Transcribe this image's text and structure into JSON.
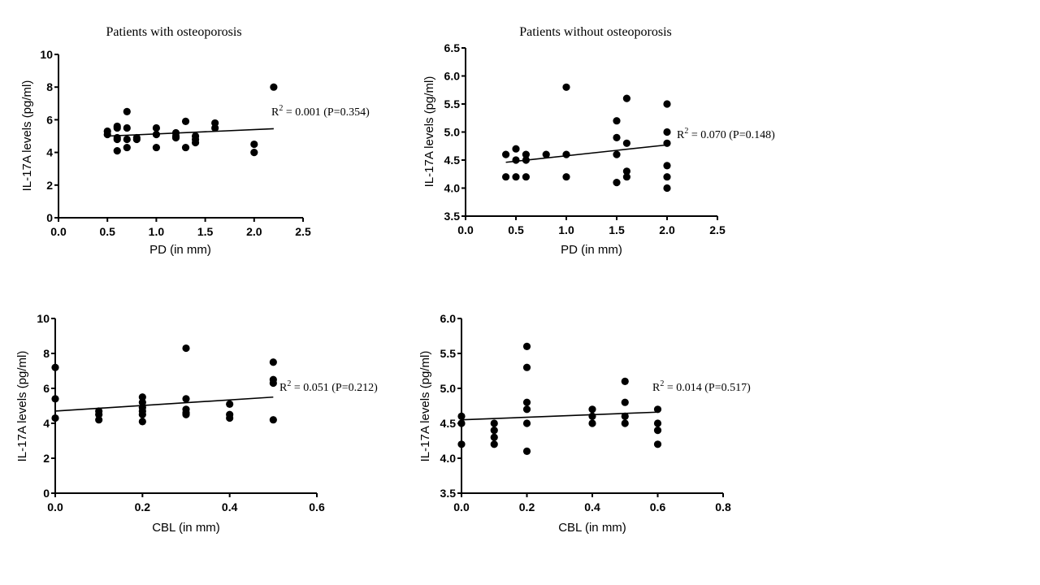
{
  "chart_data": [
    {
      "type": "scatter",
      "title": "Patients with osteoporosis",
      "xlabel": "PD (in mm)",
      "ylabel": "IL-17A levels (pg/ml)",
      "xlim": [
        0,
        2.5
      ],
      "ylim": [
        0,
        10
      ],
      "xticks": [
        "0.0",
        "0.5",
        "1.0",
        "1.5",
        "2.0",
        "2.5"
      ],
      "xtick_values": [
        0,
        0.5,
        1.0,
        1.5,
        2.0,
        2.5
      ],
      "yticks": [
        "0",
        "2",
        "4",
        "6",
        "8",
        "10"
      ],
      "ytick_values": [
        0,
        2,
        4,
        6,
        8,
        10
      ],
      "grid": false,
      "points": [
        [
          0.5,
          5.3
        ],
        [
          0.5,
          5.1
        ],
        [
          0.6,
          5.6
        ],
        [
          0.6,
          5.5
        ],
        [
          0.6,
          4.9
        ],
        [
          0.6,
          4.8
        ],
        [
          0.6,
          4.1
        ],
        [
          0.7,
          6.5
        ],
        [
          0.7,
          5.5
        ],
        [
          0.7,
          4.8
        ],
        [
          0.7,
          4.3
        ],
        [
          0.8,
          4.9
        ],
        [
          0.8,
          4.8
        ],
        [
          1.0,
          5.5
        ],
        [
          1.0,
          5.1
        ],
        [
          1.0,
          4.3
        ],
        [
          1.2,
          5.2
        ],
        [
          1.2,
          5.0
        ],
        [
          1.2,
          4.9
        ],
        [
          1.3,
          5.9
        ],
        [
          1.3,
          4.3
        ],
        [
          1.4,
          5.0
        ],
        [
          1.4,
          4.8
        ],
        [
          1.4,
          4.6
        ],
        [
          1.6,
          5.8
        ],
        [
          1.6,
          5.5
        ],
        [
          2.0,
          4.5
        ],
        [
          2.0,
          4.0
        ],
        [
          2.2,
          8.0
        ]
      ],
      "regression_line": {
        "x": [
          0.5,
          2.2
        ],
        "y": [
          5.0,
          5.45
        ]
      },
      "annotation": {
        "r2_label": "R",
        "r2_sup": "2",
        "text": " = 0.001 (P=0.354)"
      }
    },
    {
      "type": "scatter",
      "title": "Patients without osteoporosis",
      "xlabel": "PD (in mm)",
      "ylabel": "IL-17A levels (pg/ml)",
      "xlim": [
        0,
        2.5
      ],
      "ylim": [
        3.5,
        6.5
      ],
      "xticks": [
        "0.0",
        "0.5",
        "1.0",
        "1.5",
        "2.0",
        "2.5"
      ],
      "xtick_values": [
        0,
        0.5,
        1.0,
        1.5,
        2.0,
        2.5
      ],
      "yticks": [
        "3.5",
        "4.0",
        "4.5",
        "5.0",
        "5.5",
        "6.0",
        "6.5"
      ],
      "ytick_values": [
        3.5,
        4.0,
        4.5,
        5.0,
        5.5,
        6.0,
        6.5
      ],
      "grid": false,
      "points": [
        [
          0.4,
          4.6
        ],
        [
          0.4,
          4.2
        ],
        [
          0.5,
          4.7
        ],
        [
          0.5,
          4.5
        ],
        [
          0.5,
          4.2
        ],
        [
          0.6,
          4.6
        ],
        [
          0.6,
          4.5
        ],
        [
          0.6,
          4.2
        ],
        [
          0.8,
          4.6
        ],
        [
          1.0,
          5.8
        ],
        [
          1.0,
          4.6
        ],
        [
          1.0,
          4.2
        ],
        [
          1.5,
          5.2
        ],
        [
          1.5,
          4.9
        ],
        [
          1.5,
          4.6
        ],
        [
          1.5,
          4.1
        ],
        [
          1.6,
          5.6
        ],
        [
          1.6,
          4.8
        ],
        [
          1.6,
          4.3
        ],
        [
          1.6,
          4.2
        ],
        [
          2.0,
          5.5
        ],
        [
          2.0,
          5.0
        ],
        [
          2.0,
          4.8
        ],
        [
          2.0,
          4.4
        ],
        [
          2.0,
          4.2
        ],
        [
          2.0,
          4.0
        ]
      ],
      "regression_line": {
        "x": [
          0.4,
          2.0
        ],
        "y": [
          4.46,
          4.77
        ]
      },
      "annotation": {
        "r2_label": "R",
        "r2_sup": "2",
        "text": " = 0.070 (P=0.148)"
      }
    },
    {
      "type": "scatter",
      "title": "",
      "xlabel": "CBL (in mm)",
      "ylabel": "IL-17A levels (pg/ml)",
      "xlim": [
        0,
        0.6
      ],
      "ylim": [
        0,
        10
      ],
      "xticks": [
        "0.0",
        "0.2",
        "0.4",
        "0.6"
      ],
      "xtick_values": [
        0,
        0.2,
        0.4,
        0.6
      ],
      "yticks": [
        "0",
        "2",
        "4",
        "6",
        "8",
        "10"
      ],
      "ytick_values": [
        0,
        2,
        4,
        6,
        8,
        10
      ],
      "grid": false,
      "points": [
        [
          0.0,
          7.2
        ],
        [
          0.0,
          5.4
        ],
        [
          0.0,
          4.3
        ],
        [
          0.1,
          4.7
        ],
        [
          0.1,
          4.5
        ],
        [
          0.1,
          4.2
        ],
        [
          0.2,
          5.5
        ],
        [
          0.2,
          5.2
        ],
        [
          0.2,
          4.9
        ],
        [
          0.2,
          4.7
        ],
        [
          0.2,
          4.5
        ],
        [
          0.2,
          4.1
        ],
        [
          0.3,
          8.3
        ],
        [
          0.3,
          5.4
        ],
        [
          0.3,
          4.8
        ],
        [
          0.3,
          4.6
        ],
        [
          0.3,
          4.5
        ],
        [
          0.4,
          5.1
        ],
        [
          0.4,
          4.5
        ],
        [
          0.4,
          4.3
        ],
        [
          0.5,
          7.5
        ],
        [
          0.5,
          6.5
        ],
        [
          0.5,
          6.3
        ],
        [
          0.5,
          4.2
        ]
      ],
      "regression_line": {
        "x": [
          0.0,
          0.5
        ],
        "y": [
          4.7,
          5.5
        ]
      },
      "annotation": {
        "r2_label": "R",
        "r2_sup": "2",
        "text": " = 0.051 (P=0.212)"
      }
    },
    {
      "type": "scatter",
      "title": "",
      "xlabel": "CBL (in mm)",
      "ylabel": "IL-17A levels (pg/ml)",
      "xlim": [
        0,
        0.8
      ],
      "ylim": [
        3.5,
        6.0
      ],
      "xticks": [
        "0.0",
        "0.2",
        "0.4",
        "0.6",
        "0.8"
      ],
      "xtick_values": [
        0,
        0.2,
        0.4,
        0.6,
        0.8
      ],
      "yticks": [
        "3.5",
        "4.0",
        "4.5",
        "5.0",
        "5.5",
        "6.0"
      ],
      "ytick_values": [
        3.5,
        4.0,
        4.5,
        5.0,
        5.5,
        6.0
      ],
      "grid": false,
      "points": [
        [
          0.0,
          4.6
        ],
        [
          0.0,
          4.5
        ],
        [
          0.0,
          4.2
        ],
        [
          0.1,
          4.5
        ],
        [
          0.1,
          4.4
        ],
        [
          0.1,
          4.3
        ],
        [
          0.1,
          4.2
        ],
        [
          0.2,
          5.6
        ],
        [
          0.2,
          5.3
        ],
        [
          0.2,
          4.8
        ],
        [
          0.2,
          4.7
        ],
        [
          0.2,
          4.5
        ],
        [
          0.2,
          4.1
        ],
        [
          0.4,
          4.7
        ],
        [
          0.4,
          4.6
        ],
        [
          0.4,
          4.5
        ],
        [
          0.5,
          5.1
        ],
        [
          0.5,
          4.8
        ],
        [
          0.5,
          4.6
        ],
        [
          0.5,
          4.5
        ],
        [
          0.6,
          4.7
        ],
        [
          0.6,
          4.5
        ],
        [
          0.6,
          4.4
        ],
        [
          0.6,
          4.2
        ]
      ],
      "regression_line": {
        "x": [
          0.0,
          0.6
        ],
        "y": [
          4.55,
          4.66
        ]
      },
      "annotation": {
        "r2_label": "R",
        "r2_sup": "2",
        "text": " = 0.014 (P=0.517)"
      }
    }
  ]
}
